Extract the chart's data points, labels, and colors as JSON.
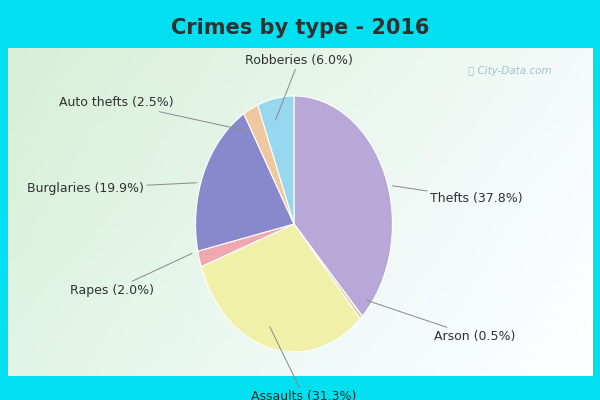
{
  "title": "Crimes by type - 2016",
  "slices": [
    {
      "label": "Thefts (37.8%)",
      "value": 37.8,
      "color": "#b8a8d8"
    },
    {
      "label": "Arson (0.5%)",
      "value": 0.5,
      "color": "#d8d0b0"
    },
    {
      "label": "Assaults (31.3%)",
      "value": 31.3,
      "color": "#f0f0a8"
    },
    {
      "label": "Rapes (2.0%)",
      "value": 2.0,
      "color": "#f0a8b0"
    },
    {
      "label": "Burglaries (19.9%)",
      "value": 19.9,
      "color": "#8888cc"
    },
    {
      "label": "Auto thefts (2.5%)",
      "value": 2.5,
      "color": "#f0c8a0"
    },
    {
      "label": "Robberies (6.0%)",
      "value": 6.0,
      "color": "#98d8ee"
    }
  ],
  "bg_top_color": "#d8f0d8",
  "bg_bottom_color": "#e8f8e8",
  "bg_right_color": "#f0f8f8",
  "title_fontsize": 15,
  "label_fontsize": 9,
  "border_color": "#00e0f0",
  "border_thickness": 10,
  "title_color": "#303030",
  "label_color": "#303030"
}
